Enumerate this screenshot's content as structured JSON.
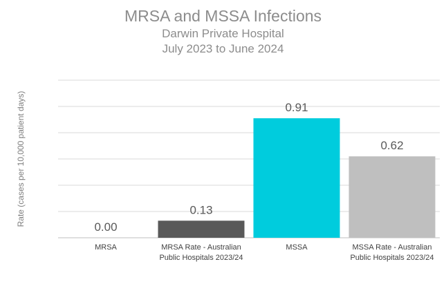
{
  "chart_data": {
    "type": "bar",
    "title": "MRSA and MSSA Infections",
    "subtitle": [
      "Darwin Private Hospital",
      "July 2023 to June 2024"
    ],
    "xlabel": "",
    "ylabel": "Rate (cases  per 10,000 patient days)",
    "categories": [
      [
        "MRSA"
      ],
      [
        "MRSA Rate - Australian",
        "Public Hospitals 2023/24"
      ],
      [
        "MSSA"
      ],
      [
        "MSSA Rate - Australian",
        "Public Hospitals 2023/24"
      ]
    ],
    "values": [
      0.0,
      0.13,
      0.91,
      0.62
    ],
    "value_labels": [
      "0.00",
      "0.13",
      "0.91",
      "0.62"
    ],
    "colors": [
      "#595959",
      "#595959",
      "#00ccdd",
      "#bfbfbf"
    ],
    "ylim": [
      0,
      1.2
    ],
    "gridlines": [
      0,
      0.2,
      0.4,
      0.6,
      0.8,
      1.0,
      1.2
    ],
    "grid": true,
    "legend": "none"
  }
}
